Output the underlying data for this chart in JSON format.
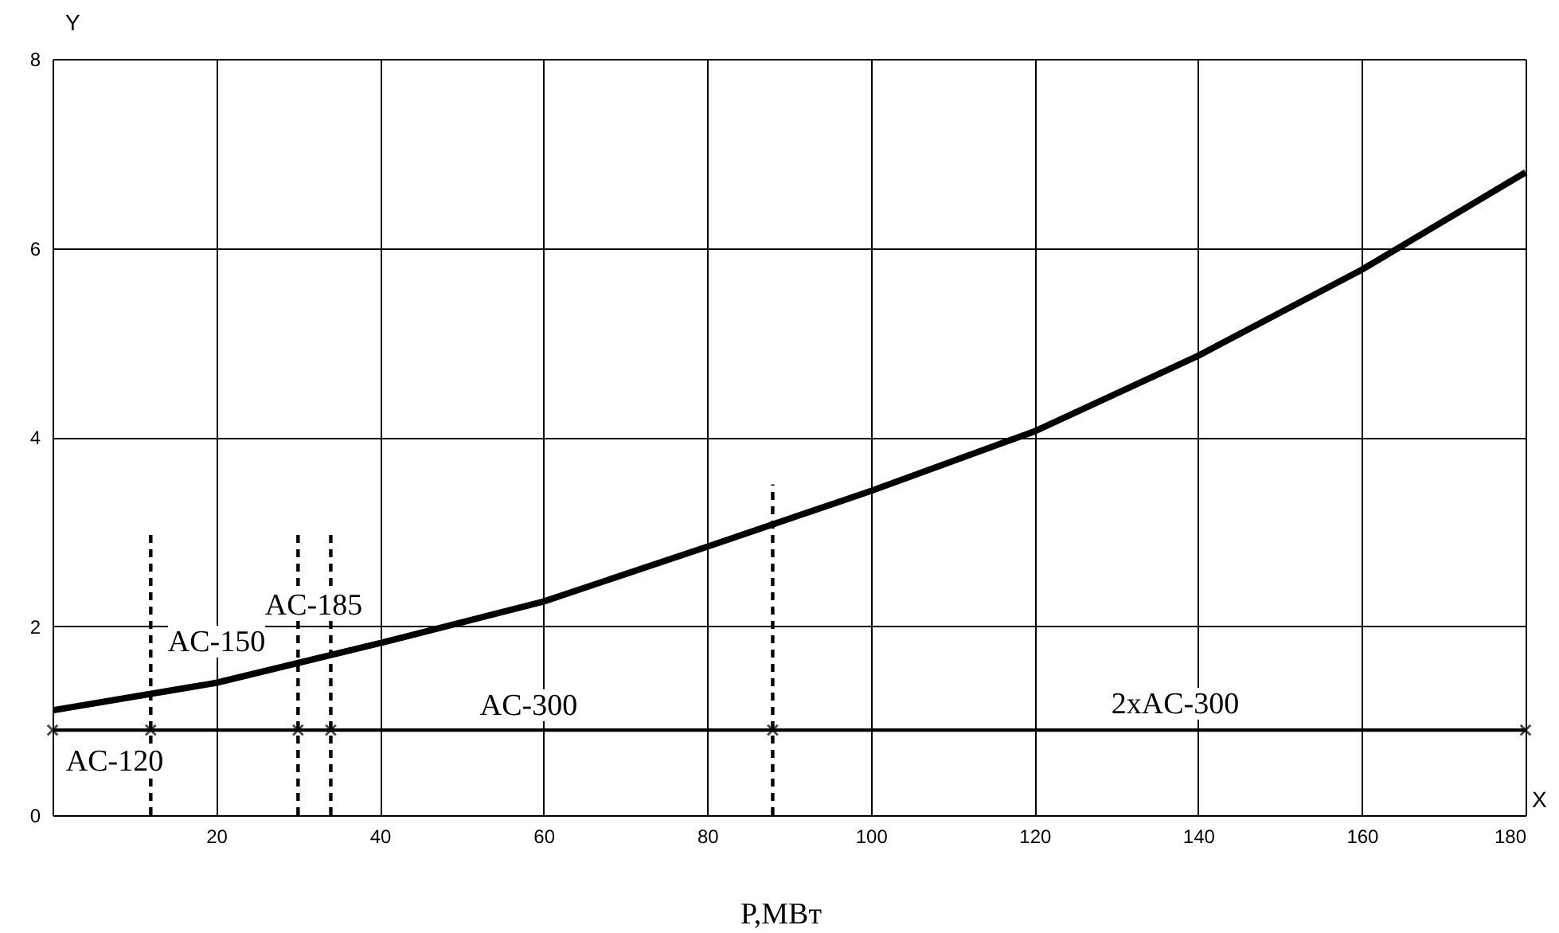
{
  "chart_data": {
    "type": "line",
    "xlabel": "P,МВт",
    "ylabel": "Y",
    "xlim": [
      0,
      180
    ],
    "ylim": [
      0,
      8
    ],
    "xticks": [
      {
        "value": 0,
        "label": null
      },
      20,
      40,
      60,
      80,
      100,
      120,
      140,
      160,
      180
    ],
    "yticks": [
      0,
      2,
      4,
      6,
      8
    ],
    "grid": true,
    "series": [
      {
        "color": "#000000",
        "x": [
          0,
          20,
          40,
          60,
          80,
          100,
          120,
          140,
          160,
          180
        ],
        "values": [
          1.11,
          1.4,
          1.82,
          2.26,
          2.84,
          3.43,
          4.06,
          4.86,
          5.77,
          6.8
        ],
        "marker": "none",
        "line_style": "solid"
      },
      {
        "color": "#000000",
        "x": [
          0,
          12,
          30,
          34,
          88,
          180
        ],
        "values": [
          0.9,
          0.9,
          0.9,
          0.9,
          0.9,
          0.9
        ],
        "marker": "cross",
        "line_style": "solid"
      },
      {
        "color": "#000000",
        "x": [
          12,
          12
        ],
        "values": [
          0,
          3
        ],
        "marker": "none",
        "line_style": "dashed"
      },
      {
        "color": "#000000",
        "x": [
          30,
          30
        ],
        "values": [
          0,
          3
        ],
        "marker": "none",
        "line_style": "dashed"
      },
      {
        "color": "#000000",
        "x": [
          34,
          34
        ],
        "values": [
          0,
          3
        ],
        "marker": "none",
        "line_style": "dashed"
      },
      {
        "color": "#000000",
        "x": [
          88,
          88
        ],
        "values": [
          0,
          3.5
        ],
        "marker": "none",
        "line_style": "dashed"
      }
    ],
    "annotations": [
      "AC-120",
      "AC-150",
      "AC-185",
      "AC-300",
      "2xAC-300",
      "X"
    ]
  }
}
